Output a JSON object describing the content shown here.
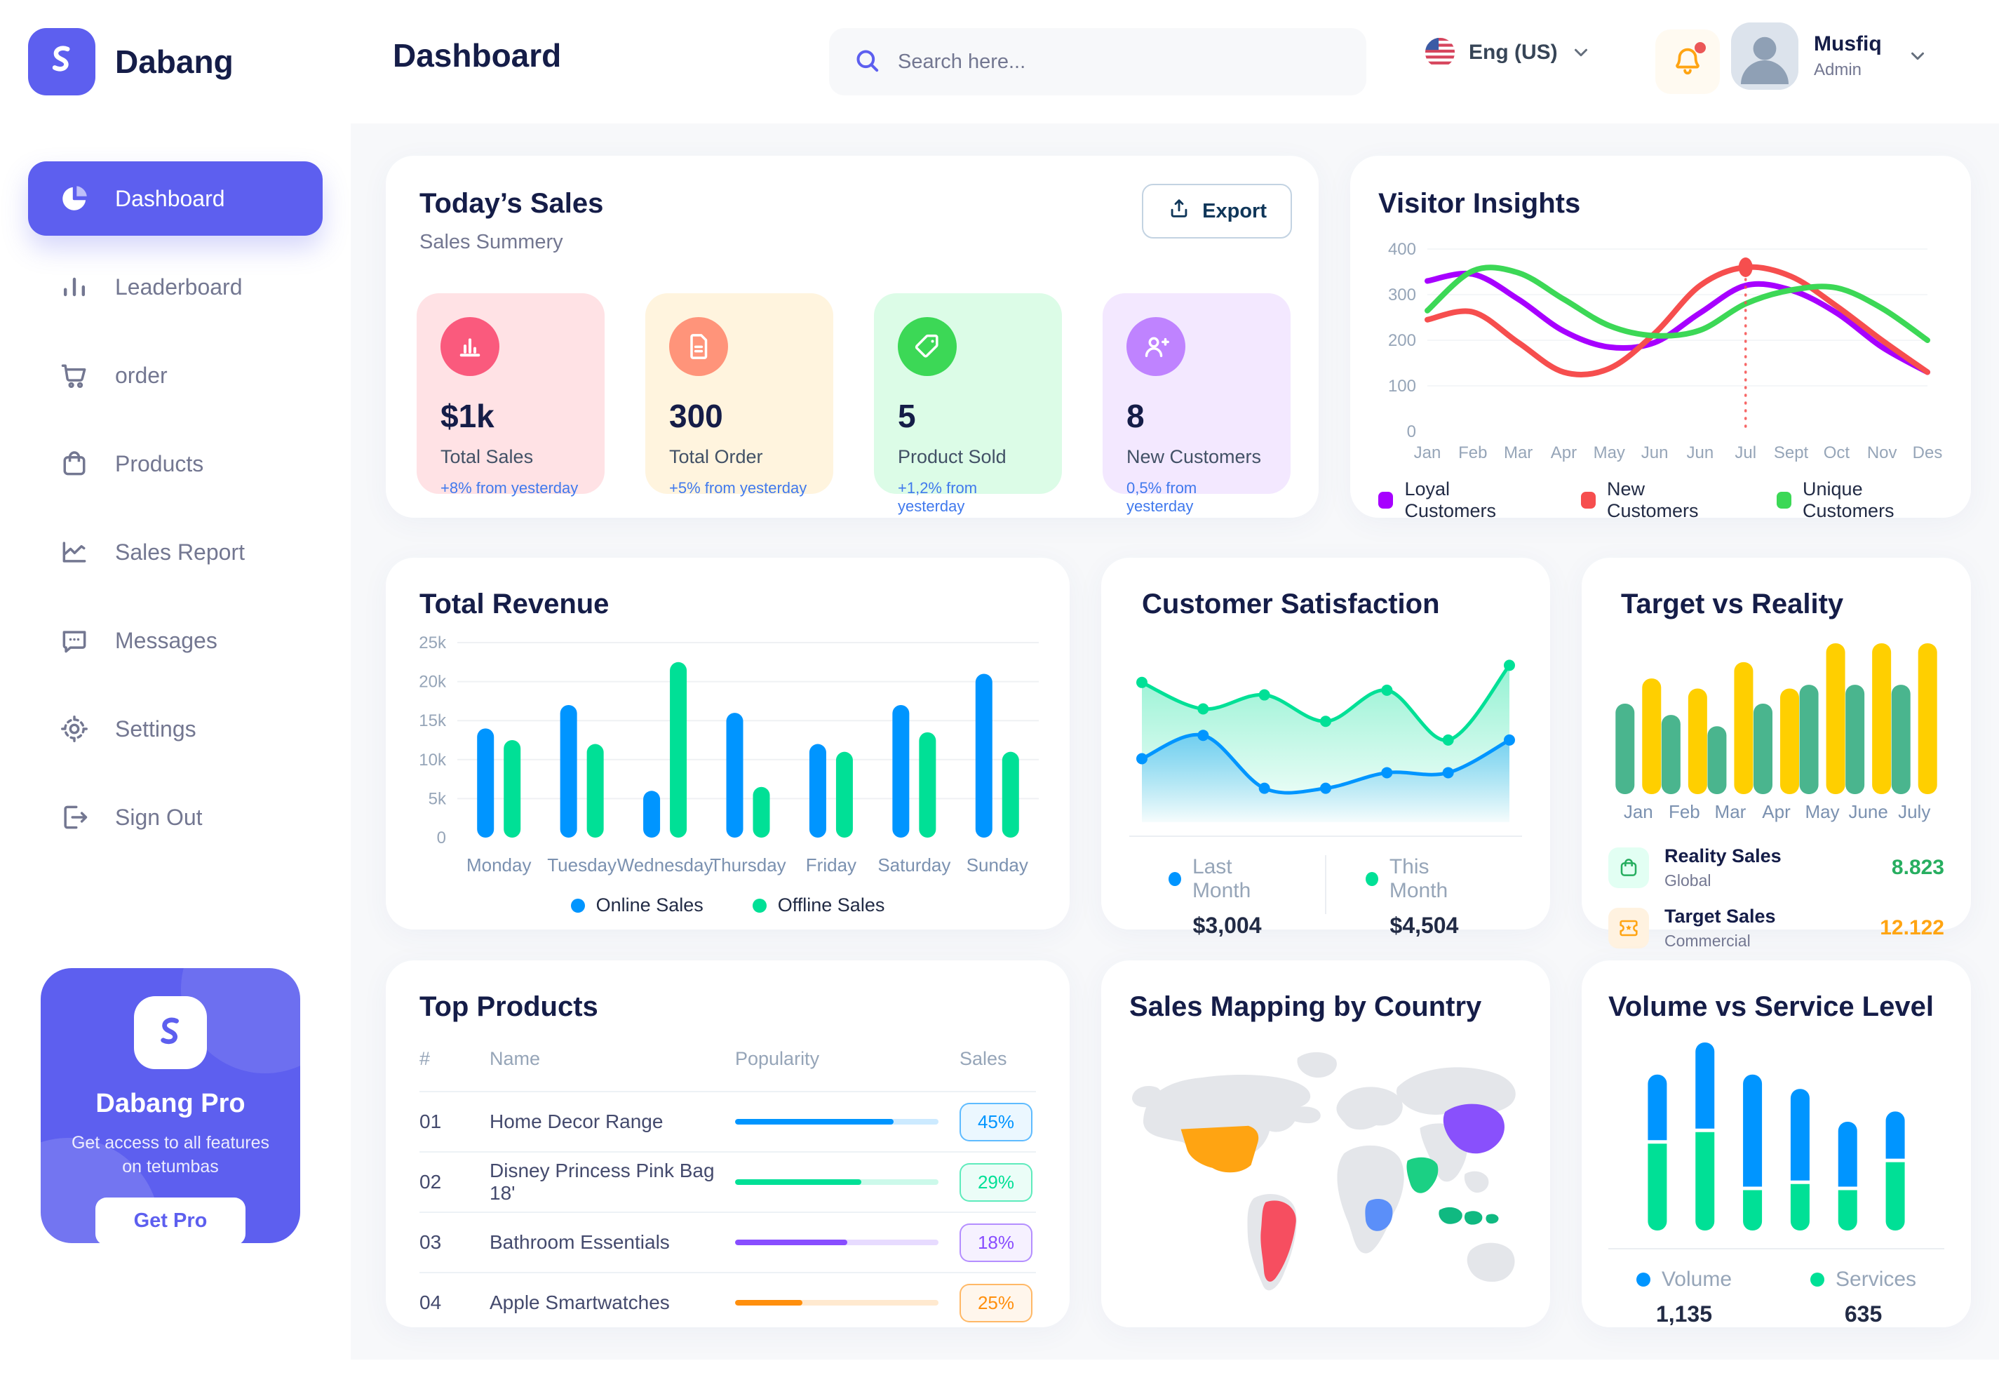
{
  "app": {
    "brand": "Dabang"
  },
  "header": {
    "title": "Dashboard",
    "search": {
      "placeholder": "Search here..."
    },
    "language": {
      "label": "Eng (US)"
    },
    "user": {
      "name": "Musfiq",
      "role": "Admin"
    }
  },
  "sidebar": {
    "items": [
      {
        "label": "Dashboard",
        "icon": "pie",
        "active": true
      },
      {
        "label": "Leaderboard",
        "icon": "bars",
        "active": false
      },
      {
        "label": "order",
        "icon": "cart",
        "active": false
      },
      {
        "label": "Products",
        "icon": "bag",
        "active": false
      },
      {
        "label": "Sales Report",
        "icon": "linechart",
        "active": false
      },
      {
        "label": "Messages",
        "icon": "message",
        "active": false
      },
      {
        "label": "Settings",
        "icon": "gear",
        "active": false
      },
      {
        "label": "Sign Out",
        "icon": "signout",
        "active": false
      }
    ],
    "pro": {
      "title": "Dabang Pro",
      "description": "Get access to all features on tetumbas",
      "button_label": "Get Pro"
    }
  },
  "todays_sales": {
    "title": "Today’s Sales",
    "subtitle": "Sales Summery",
    "export_label": "Export",
    "stats": [
      {
        "value": "$1k",
        "label": "Total Sales",
        "delta": "+8% from yesterday",
        "bg": "#FFE2E5",
        "icon_bg": "#FA5A7D",
        "icon": "statchart"
      },
      {
        "value": "300",
        "label": "Total Order",
        "delta": "+5% from yesterday",
        "bg": "#FFF4DE",
        "icon_bg": "#FF947A",
        "icon": "statorder"
      },
      {
        "value": "5",
        "label": "Product Sold",
        "delta": "+1,2% from yesterday",
        "bg": "#DCFCE7",
        "icon_bg": "#3CD856",
        "icon": "stattag"
      },
      {
        "value": "8",
        "label": "New Customers",
        "delta": "0,5% from yesterday",
        "bg": "#F3E8FF",
        "icon_bg": "#BF83FF",
        "icon": "statuser"
      }
    ]
  },
  "visitor_insights": {
    "title": "Visitor Insights",
    "chart_data": {
      "type": "line",
      "x_labels": [
        "Jan",
        "Feb",
        "Mar",
        "Apr",
        "May",
        "Jun",
        "Jun",
        "Jul",
        "Sept",
        "Oct",
        "Nov",
        "Des"
      ],
      "y_ticks": [
        0,
        100,
        200,
        300,
        400
      ],
      "y_max": 400,
      "series": [
        {
          "name": "Loyal Customers",
          "color": "#A700FF",
          "values": [
            330,
            345,
            290,
            220,
            185,
            195,
            260,
            320,
            310,
            260,
            185,
            130
          ]
        },
        {
          "name": "New Customers",
          "color": "#F64E4E",
          "values": [
            245,
            262,
            195,
            130,
            138,
            215,
            320,
            360,
            340,
            275,
            200,
            130
          ]
        },
        {
          "name": "Unique Customers",
          "color": "#3CD856",
          "values": [
            265,
            352,
            348,
            290,
            232,
            210,
            222,
            280,
            310,
            315,
            270,
            200
          ]
        }
      ],
      "annotation": {
        "series_index": 1,
        "point_index": 7
      }
    }
  },
  "total_revenue": {
    "title": "Total Revenue",
    "chart_data": {
      "type": "bar",
      "x_labels": [
        "Monday",
        "Tuesday",
        "Wednesday",
        "Thursday",
        "Friday",
        "Saturday",
        "Sunday"
      ],
      "y_tick_labels": [
        "0",
        "5k",
        "10k",
        "15k",
        "20k",
        "25k"
      ],
      "y_max": 25,
      "series": [
        {
          "name": "Online Sales",
          "color": "#0095FF",
          "values": [
            14,
            17,
            6,
            16,
            12,
            17,
            21
          ]
        },
        {
          "name": "Offline Sales",
          "color": "#00E096",
          "values": [
            12.5,
            12,
            22.5,
            6.5,
            11,
            13.5,
            11
          ]
        }
      ]
    }
  },
  "customer_satisfaction": {
    "title": "Customer Satisfaction",
    "chart_data": {
      "type": "area",
      "y_max": 110,
      "series": [
        {
          "name": "Last Month",
          "color": "#0095FF",
          "value_label": "$3,004",
          "values": [
            39,
            54,
            20,
            20,
            30,
            30,
            51
          ]
        },
        {
          "name": "This Month",
          "color": "#00E096",
          "value_label": "$4,504",
          "values": [
            88,
            71,
            80,
            63,
            83,
            51,
            99
          ]
        }
      ]
    }
  },
  "target_vs_reality": {
    "title": "Target vs Reality",
    "chart_data": {
      "type": "bar",
      "x_labels": [
        "Jan",
        "Feb",
        "Mar",
        "Apr",
        "May",
        "June",
        "July"
      ],
      "y_max": 12.5,
      "series": [
        {
          "name": "Reality Sales",
          "color": "#4AB58E",
          "values": [
            7.2,
            6.3,
            5.4,
            7.2,
            8.7,
            8.7,
            8.7
          ]
        },
        {
          "name": "Target Sales",
          "color": "#FFCF00",
          "values": [
            9.2,
            8.4,
            10.5,
            8.4,
            12,
            12,
            12
          ]
        }
      ]
    },
    "legend": [
      {
        "label": "Reality Sales",
        "sublabel": "Global",
        "value": "8.823",
        "value_color": "#27AE60",
        "icon_bg": "#E2FFF3"
      },
      {
        "label": "Target Sales",
        "sublabel": "Commercial",
        "value": "12.122",
        "value_color": "#FFA412",
        "icon_bg": "#FFF2E0"
      }
    ]
  },
  "top_products": {
    "title": "Top Products",
    "columns": [
      "#",
      "Name",
      "Popularity",
      "Sales"
    ],
    "rows": [
      {
        "num": "01",
        "name": "Home Decor Range",
        "popularity": 78,
        "sales": "45%",
        "color": "#0095FF"
      },
      {
        "num": "02",
        "name": "Disney Princess Pink Bag 18'",
        "popularity": 62,
        "sales": "29%",
        "color": "#00E096"
      },
      {
        "num": "03",
        "name": "Bathroom Essentials",
        "popularity": 55,
        "sales": "18%",
        "color": "#884DFF"
      },
      {
        "num": "04",
        "name": "Apple Smartwatches",
        "popularity": 33,
        "sales": "25%",
        "color": "#FF8F0D"
      }
    ]
  },
  "sales_map": {
    "title": "Sales Mapping by Country",
    "countries": [
      {
        "id": "usa",
        "name": "United States",
        "color": "#FFA412"
      },
      {
        "id": "brazil",
        "name": "Brazil",
        "color": "#F64E60"
      },
      {
        "id": "china",
        "name": "China",
        "color": "#8950FC"
      },
      {
        "id": "saudi",
        "name": "Saudi Arabia",
        "color": "#1BD084"
      },
      {
        "id": "congo",
        "name": "DR Congo",
        "color": "#5B8FF9"
      },
      {
        "id": "indonesia",
        "name": "Indonesia",
        "color": "#10B981"
      }
    ]
  },
  "volume_service": {
    "title": "Volume vs Service Level",
    "chart_data": {
      "type": "stacked-bar",
      "series": [
        {
          "name": "Volume",
          "color": "#0095FF",
          "total_label": "1,135",
          "values": [
            96,
            126,
            164,
            134,
            95,
            69
          ]
        },
        {
          "name": "Services",
          "color": "#00E096",
          "total_label": "635",
          "values": [
            127,
            144,
            59,
            68,
            59,
            100
          ]
        }
      ]
    }
  }
}
